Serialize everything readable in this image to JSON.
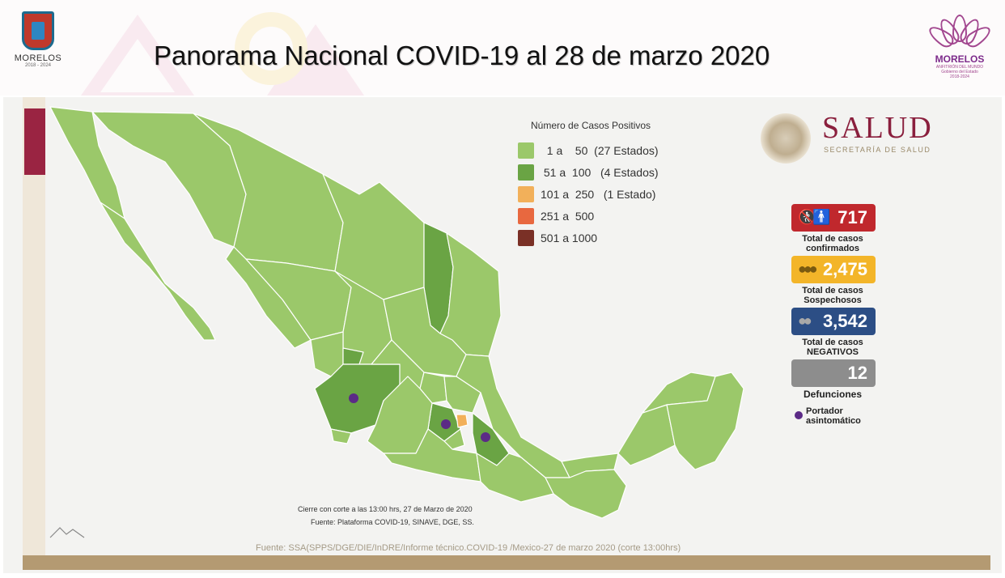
{
  "header": {
    "title": "Panorama Nacional COVID-19 al 28 de marzo 2020",
    "logo_left": {
      "name": "MORELOS",
      "years": "2018 - 2024"
    },
    "logo_right": {
      "name": "MORELOS",
      "sub1": "ANFITRIÓN DEL MUNDO",
      "sub2": "Gobierno del Estado",
      "sub3": "2018-2024"
    }
  },
  "salud": {
    "word": "SALUD",
    "sub": "SECRETARÍA DE SALUD"
  },
  "legend": {
    "title": "Número de Casos Positivos",
    "items": [
      {
        "label": "  1 a    50  (27 Estados)",
        "color": "#9bc86a"
      },
      {
        "label": " 51 a  100   (4 Estados)",
        "color": "#6aa444"
      },
      {
        "label": "101 a  250   (1 Estado)",
        "color": "#f2b05a"
      },
      {
        "label": "251 a  500",
        "color": "#e8683f"
      },
      {
        "label": "501 a 1000",
        "color": "#7a3026"
      }
    ]
  },
  "stats": {
    "confirmados": {
      "value": "717",
      "label_1": "Total de casos",
      "label_2": "confirmados",
      "color": "#c0282d"
    },
    "sospechosos": {
      "value": "2,475",
      "label_1": "Total de casos",
      "label_2": "Sospechosos",
      "color": "#f3b529"
    },
    "negativos": {
      "value": "3,542",
      "label_1": "Total de casos",
      "label_2": "NEGATIVOS",
      "color": "#2c4e85"
    },
    "defunciones": {
      "value": "12",
      "label": "Defunciones",
      "color": "#8d8d8d"
    }
  },
  "portador": {
    "line1": "Portador",
    "line2": "asintomático",
    "color": "#5b2a86"
  },
  "notes": {
    "cierre": "Cierre con corte a las 13:00 hrs, 27 de Marzo de 2020",
    "plataforma": "Fuente: Plataforma COVID-19, SINAVE, DGE, SS.",
    "fuente": "Fuente: SSA(SPPS/DGE/DIE/InDRE/Informe técnico.COVID-19 /Mexico-27 de marzo 2020 (corte 13:00hrs)"
  }
}
